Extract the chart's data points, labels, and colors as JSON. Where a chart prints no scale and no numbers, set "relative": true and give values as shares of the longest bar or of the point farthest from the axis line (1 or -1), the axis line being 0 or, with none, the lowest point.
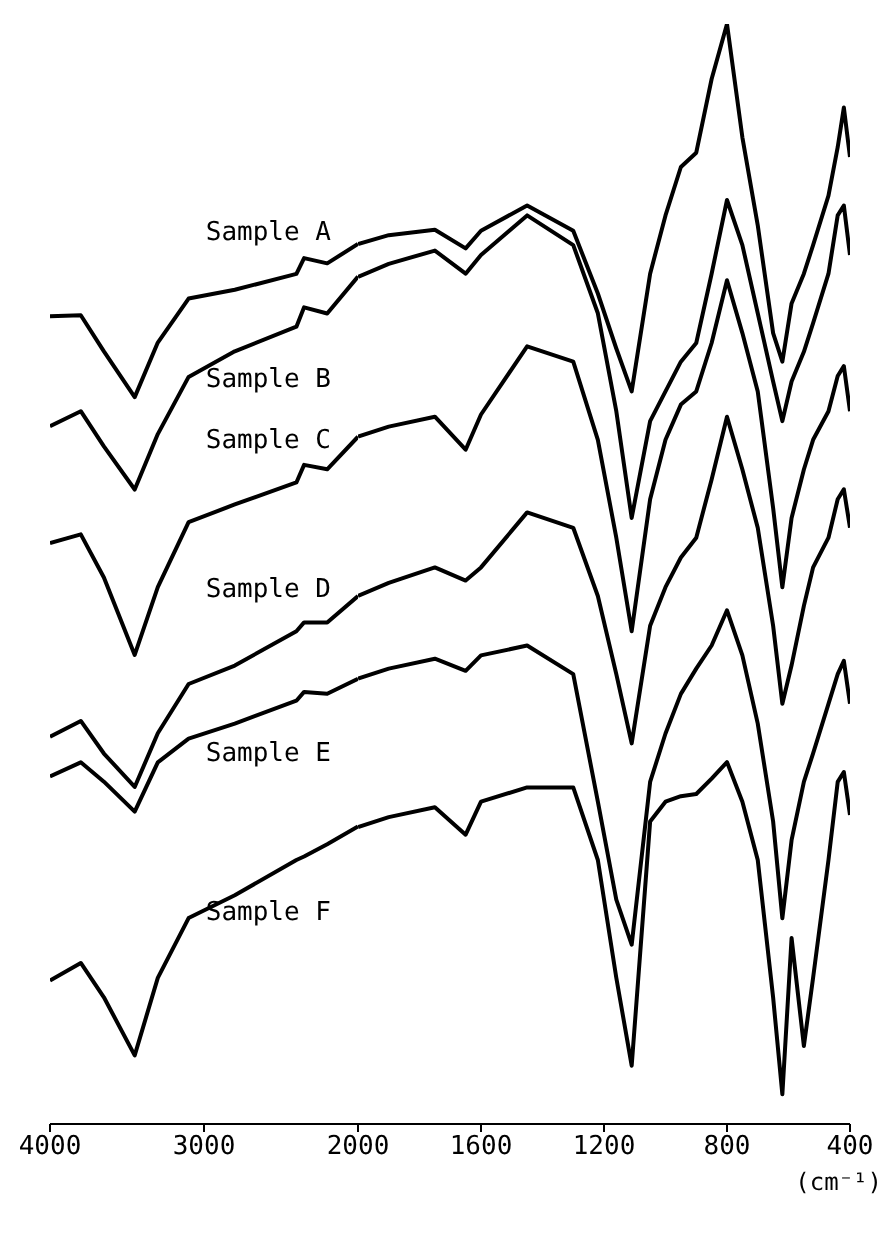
{
  "chart_data": [
    {
      "type": "line",
      "relative": true,
      "x": [
        4000,
        3800,
        3650,
        3450,
        3300,
        3100,
        2800,
        2400,
        2350,
        2200,
        2000
      ],
      "xlim": [
        4000,
        2000
      ],
      "xticks": [
        4000,
        3000,
        2000
      ],
      "series": [
        {
          "name": "Sample A",
          "color": "#000000",
          "values": [
            0.918,
            0.919,
            0.878,
            0.826,
            0.888,
            0.938,
            0.948,
            0.966,
            0.984,
            0.978,
            1.0
          ]
        },
        {
          "name": "Sample B",
          "color": "#000000",
          "values": [
            0.793,
            0.81,
            0.77,
            0.721,
            0.784,
            0.849,
            0.878,
            0.906,
            0.928,
            0.921,
            0.963
          ]
        },
        {
          "name": "Sample C",
          "color": "#000000",
          "values": [
            0.66,
            0.67,
            0.621,
            0.533,
            0.61,
            0.684,
            0.704,
            0.729,
            0.749,
            0.744,
            0.781
          ]
        },
        {
          "name": "Sample D",
          "color": "#000000",
          "values": [
            0.44,
            0.458,
            0.421,
            0.383,
            0.444,
            0.5,
            0.521,
            0.56,
            0.57,
            0.57,
            0.6
          ]
        },
        {
          "name": "Sample E",
          "color": "#000000",
          "values": [
            0.395,
            0.411,
            0.389,
            0.355,
            0.411,
            0.438,
            0.455,
            0.481,
            0.491,
            0.489,
            0.506
          ]
        },
        {
          "name": "Sample F",
          "color": "#000000",
          "values": [
            0.163,
            0.183,
            0.144,
            0.078,
            0.166,
            0.234,
            0.26,
            0.3,
            0.304,
            0.318,
            0.338
          ]
        }
      ]
    },
    {
      "type": "line",
      "relative": true,
      "xlabel": "(cm⁻¹)",
      "x": [
        2000,
        1900,
        1750,
        1650,
        1600,
        1450,
        1300,
        1220,
        1160,
        1110,
        1050,
        1000,
        950,
        900,
        850,
        800,
        750,
        700,
        650,
        620,
        590,
        550,
        520,
        470,
        440,
        420,
        400
      ],
      "xlim": [
        2000,
        400
      ],
      "xticks": [
        1600,
        1200,
        800,
        400
      ],
      "series": [
        {
          "color": "#000000",
          "values": [
            0.8,
            0.808,
            0.813,
            0.796,
            0.812,
            0.835,
            0.812,
            0.755,
            0.705,
            0.666,
            0.773,
            0.826,
            0.87,
            0.883,
            0.95,
            1.0,
            0.897,
            0.817,
            0.719,
            0.693,
            0.746,
            0.773,
            0.799,
            0.844,
            0.888,
            0.924,
            0.879
          ]
        },
        {
          "color": "#000000",
          "values": [
            0.77,
            0.782,
            0.794,
            0.773,
            0.79,
            0.826,
            0.799,
            0.737,
            0.648,
            0.551,
            0.639,
            0.666,
            0.693,
            0.71,
            0.773,
            0.84,
            0.799,
            0.737,
            0.675,
            0.639,
            0.675,
            0.702,
            0.728,
            0.773,
            0.826,
            0.835,
            0.79
          ]
        },
        {
          "color": "#000000",
          "values": [
            0.625,
            0.634,
            0.643,
            0.613,
            0.645,
            0.707,
            0.693,
            0.622,
            0.533,
            0.448,
            0.568,
            0.622,
            0.654,
            0.666,
            0.71,
            0.767,
            0.719,
            0.666,
            0.56,
            0.488,
            0.551,
            0.595,
            0.622,
            0.648,
            0.68,
            0.689,
            0.648
          ]
        },
        {
          "color": "#000000",
          "values": [
            0.48,
            0.492,
            0.506,
            0.494,
            0.506,
            0.556,
            0.542,
            0.48,
            0.409,
            0.346,
            0.453,
            0.488,
            0.515,
            0.533,
            0.586,
            0.643,
            0.595,
            0.542,
            0.453,
            0.382,
            0.417,
            0.471,
            0.506,
            0.533,
            0.568,
            0.577,
            0.542
          ]
        },
        {
          "color": "#000000",
          "values": [
            0.405,
            0.414,
            0.423,
            0.412,
            0.426,
            0.435,
            0.409,
            0.293,
            0.204,
            0.163,
            0.311,
            0.355,
            0.391,
            0.414,
            0.435,
            0.467,
            0.426,
            0.364,
            0.275,
            0.187,
            0.258,
            0.311,
            0.337,
            0.382,
            0.409,
            0.421,
            0.382
          ]
        },
        {
          "color": "#000000",
          "values": [
            0.27,
            0.279,
            0.288,
            0.263,
            0.293,
            0.306,
            0.306,
            0.24,
            0.133,
            0.053,
            0.275,
            0.293,
            0.298,
            0.3,
            0.314,
            0.329,
            0.293,
            0.24,
            0.115,
            0.027,
            0.169,
            0.071,
            0.133,
            0.24,
            0.311,
            0.32,
            0.281
          ]
        }
      ]
    }
  ]
}
